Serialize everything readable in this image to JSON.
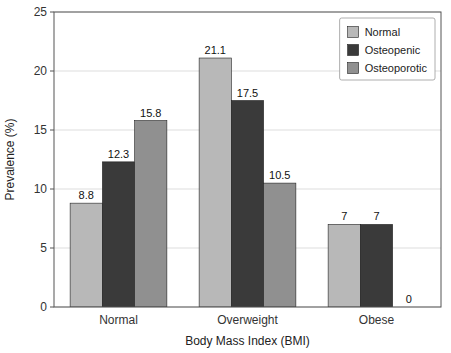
{
  "chart_data": {
    "type": "bar",
    "xlabel": "Body Mass Index (BMI)",
    "ylabel": "Prevalence (%)",
    "categories": [
      "Normal",
      "Overweight",
      "Obese"
    ],
    "series": [
      {
        "name": "Normal",
        "color": "#b8b8b8",
        "values": [
          8.8,
          21.1,
          7.0
        ],
        "value_labels": [
          "8.8",
          "21.1",
          "7"
        ]
      },
      {
        "name": "Osteopenic",
        "color": "#3a3a3a",
        "values": [
          12.3,
          17.5,
          7.0
        ],
        "value_labels": [
          "12.3",
          "17.5",
          "7"
        ]
      },
      {
        "name": "Osteoporotic",
        "color": "#909090",
        "values": [
          15.8,
          10.5,
          0.0
        ],
        "value_labels": [
          "15.8",
          "10.5",
          "0"
        ]
      }
    ],
    "ylim": [
      0,
      25
    ],
    "yticks": [
      0,
      5,
      10,
      15,
      20,
      25
    ],
    "grid": true,
    "legend": "upper right",
    "data_labels": true
  }
}
